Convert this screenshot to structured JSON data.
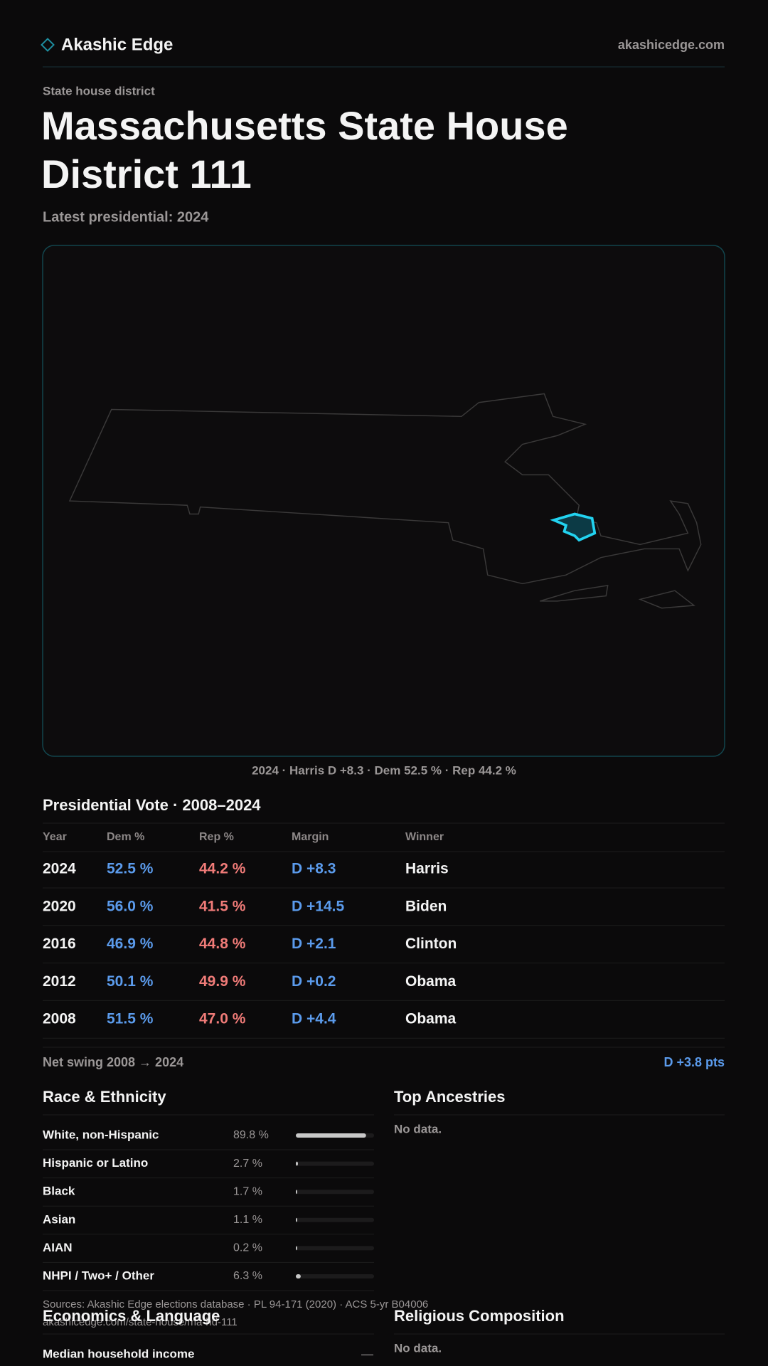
{
  "header": {
    "brand": "Akashic Edge",
    "site": "akashicedge.com"
  },
  "page": {
    "kicker": "State house district",
    "title_lines": [
      "Massachusetts State House",
      "District 111"
    ],
    "subtitle": "Latest presidential: 2024"
  },
  "map_caption": "2024 · Harris D +8.3 · Dem 52.5 % · Rep 44.2 %",
  "presidential": {
    "title": "Presidential Vote · 2008–2024",
    "columns": [
      "Year",
      "Dem %",
      "Rep %",
      "Margin",
      "Winner"
    ],
    "rows": [
      [
        "2024",
        "52.5 %",
        "44.2 %",
        "D +8.3",
        "Harris"
      ],
      [
        "2020",
        "56.0 %",
        "41.5 %",
        "D +14.5",
        "Biden"
      ],
      [
        "2016",
        "46.9 %",
        "44.8 %",
        "D +2.1",
        "Clinton"
      ],
      [
        "2012",
        "50.1 %",
        "49.9 %",
        "D +0.2",
        "Obama"
      ],
      [
        "2008",
        "51.5 %",
        "47.0 %",
        "D +4.4",
        "Obama"
      ]
    ],
    "net_swing_label": "Net swing 2008 → 2024",
    "net_swing": "D +3.8 pts"
  },
  "race": {
    "title": "Race & Ethnicity",
    "xlim": [
      0,
      100
    ],
    "rows": [
      {
        "label": "White, non-Hispanic",
        "value": 89.8,
        "value_label": "89.8 %"
      },
      {
        "label": "Hispanic or Latino",
        "value": 2.7,
        "value_label": "2.7 %"
      },
      {
        "label": "Black",
        "value": 1.7,
        "value_label": "1.7 %"
      },
      {
        "label": "Asian",
        "value": 1.1,
        "value_label": "1.1 %"
      },
      {
        "label": "AIAN",
        "value": 0.2,
        "value_label": "0.2 %"
      },
      {
        "label": "NHPI / Two+ / Other",
        "value": 6.3,
        "value_label": "6.3 %"
      }
    ]
  },
  "ancestries": {
    "title": "Top Ancestries",
    "note": "No data."
  },
  "footer": {
    "sources": "Sources: Akashic Edge elections database · PL 94-171 (2020) · ACS 5-yr B04006",
    "url": "akashicedge.com/state-house/ma-hd-111"
  },
  "economics": {
    "title": "Economics & Language",
    "rows": [
      {
        "label": "Median household income",
        "value": "—"
      }
    ]
  },
  "religion": {
    "title": "Religious Composition",
    "note": "No data."
  }
}
